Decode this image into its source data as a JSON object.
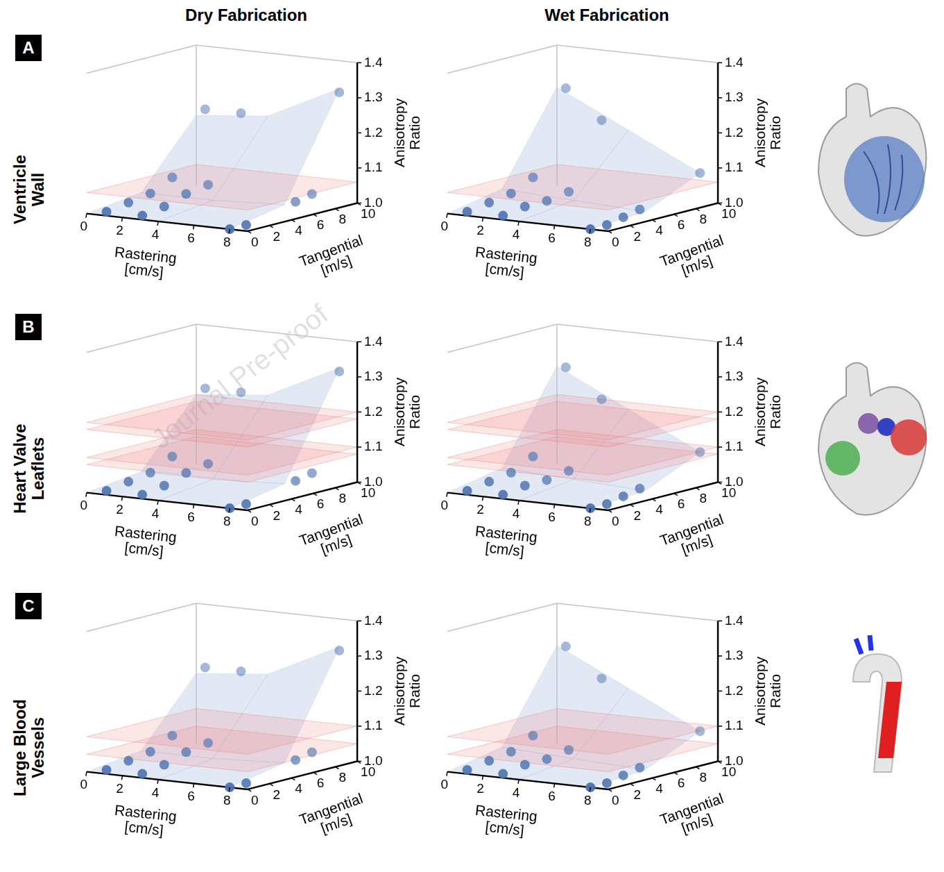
{
  "columns": [
    "Dry Fabrication",
    "Wet Fabrication"
  ],
  "rows": [
    {
      "letter": "A",
      "label": "Ventricle Wall"
    },
    {
      "letter": "B",
      "label": "Heart Valve Leaflets"
    },
    {
      "letter": "C",
      "label": "Large Blood Vessels"
    }
  ],
  "watermark": "Journal Pre-proof",
  "chart_data": [
    {
      "type": "scatter",
      "x_label": "Rastering [cm/s]",
      "y_label": "Tangential [m/s]",
      "z_label": "Anisotropy Ratio",
      "xlim": [
        0,
        9
      ],
      "xticks": [
        0,
        2,
        4,
        6,
        8
      ],
      "ylim": [
        0,
        10
      ],
      "yticks": [
        0,
        2,
        4,
        6,
        8,
        10
      ],
      "zlim": [
        1,
        1.4
      ],
      "zticks": [
        {
          "value": 1,
          "label": "1.0"
        },
        1.1,
        1.2,
        1.3,
        1.4
      ],
      "color": "#4c72b0",
      "x": [
        0.5,
        0.5,
        0.5,
        0.5,
        0.5,
        2.5,
        2.5,
        2.5,
        2.5,
        2.5,
        8,
        8,
        8,
        8,
        8
      ],
      "y": [
        1,
        3,
        5,
        7,
        10,
        1,
        3,
        5,
        7,
        10,
        0,
        1.5,
        6,
        7.5,
        10
      ],
      "z": [
        1.0,
        1.01,
        1.02,
        1.05,
        1.22,
        1.0,
        1.01,
        1.03,
        1.04,
        1.22,
        1.0,
        1.0,
        1.03,
        1.04,
        1.31
      ],
      "surface": {
        "rastering": [
          0,
          4,
          8
        ],
        "tangential": [
          0,
          5,
          10
        ],
        "z": [
          [
            1.0,
            1.0,
            1.0
          ],
          [
            1.02,
            1.02,
            1.03
          ],
          [
            1.2,
            1.22,
            1.32
          ]
        ]
      },
      "target_ratios": [
        1.06
      ]
    },
    {
      "type": "scatter",
      "x_label": "Rastering [cm/s]",
      "y_label": "Tangential [m/s]",
      "z_label": "Anisotropy Ratio",
      "xlim": [
        0,
        9
      ],
      "xticks": [
        0,
        2,
        4,
        6,
        8
      ],
      "ylim": [
        0,
        10
      ],
      "yticks": [
        0,
        2,
        4,
        6,
        8,
        10
      ],
      "zlim": [
        1,
        1.4
      ],
      "zticks": [
        {
          "value": 1,
          "label": "1.0"
        },
        1.1,
        1.2,
        1.3,
        1.4
      ],
      "color": "#4c72b0",
      "x": [
        0.5,
        0.5,
        0.5,
        0.5,
        0.5,
        2.5,
        2.5,
        2.5,
        2.5,
        2.5,
        8,
        8,
        8,
        8,
        8
      ],
      "y": [
        1,
        3,
        5,
        7,
        10,
        1,
        3,
        5,
        7,
        10,
        0,
        1.5,
        3,
        4.5,
        10
      ],
      "z": [
        1.0,
        1.01,
        1.02,
        1.05,
        1.28,
        1.0,
        1.01,
        1.01,
        1.02,
        1.2,
        1.0,
        1.0,
        1.01,
        1.02,
        1.08
      ],
      "surface": {
        "rastering": [
          0,
          4,
          8
        ],
        "tangential": [
          0,
          5,
          10
        ],
        "z": [
          [
            1.0,
            1.0,
            1.0
          ],
          [
            1.03,
            1.02,
            1.01
          ],
          [
            1.28,
            1.18,
            1.08
          ]
        ]
      },
      "target_ratios": [
        1.06
      ]
    },
    {
      "type": "scatter",
      "x_label": "Rastering [cm/s]",
      "y_label": "Tangential [m/s]",
      "z_label": "Anisotropy Ratio",
      "xlim": [
        0,
        9
      ],
      "xticks": [
        0,
        2,
        4,
        6,
        8
      ],
      "ylim": [
        0,
        10
      ],
      "yticks": [
        0,
        2,
        4,
        6,
        8,
        10
      ],
      "zlim": [
        1,
        1.4
      ],
      "zticks": [
        {
          "value": 1,
          "label": "1.0"
        },
        1.1,
        1.2,
        1.3,
        1.4
      ],
      "color": "#4c72b0",
      "x": [
        0.5,
        0.5,
        0.5,
        0.5,
        0.5,
        2.5,
        2.5,
        2.5,
        2.5,
        2.5,
        8,
        8,
        8,
        8,
        8
      ],
      "y": [
        1,
        3,
        5,
        7,
        10,
        1,
        3,
        5,
        7,
        10,
        0,
        1.5,
        6,
        7.5,
        10
      ],
      "z": [
        1.0,
        1.01,
        1.02,
        1.05,
        1.22,
        1.0,
        1.01,
        1.03,
        1.04,
        1.22,
        1.0,
        1.0,
        1.03,
        1.04,
        1.31
      ],
      "surface": {
        "rastering": [
          0,
          4,
          8
        ],
        "tangential": [
          0,
          5,
          10
        ],
        "z": [
          [
            1.0,
            1.0,
            1.0
          ],
          [
            1.02,
            1.02,
            1.03
          ],
          [
            1.2,
            1.22,
            1.32
          ]
        ]
      },
      "target_ratios": [
        1.08,
        1.1,
        1.18,
        1.2
      ]
    },
    {
      "type": "scatter",
      "x_label": "Rastering [cm/s]",
      "y_label": "Tangential [m/s]",
      "z_label": "Anisotropy Ratio",
      "xlim": [
        0,
        9
      ],
      "xticks": [
        0,
        2,
        4,
        6,
        8
      ],
      "ylim": [
        0,
        10
      ],
      "yticks": [
        0,
        2,
        4,
        6,
        8,
        10
      ],
      "zlim": [
        1,
        1.4
      ],
      "zticks": [
        {
          "value": 1,
          "label": "1.0"
        },
        1.1,
        1.2,
        1.3,
        1.4
      ],
      "color": "#4c72b0",
      "x": [
        0.5,
        0.5,
        0.5,
        0.5,
        0.5,
        2.5,
        2.5,
        2.5,
        2.5,
        2.5,
        8,
        8,
        8,
        8,
        8
      ],
      "y": [
        1,
        3,
        5,
        7,
        10,
        1,
        3,
        5,
        7,
        10,
        0,
        1.5,
        3,
        4.5,
        10
      ],
      "z": [
        1.0,
        1.01,
        1.02,
        1.05,
        1.28,
        1.0,
        1.01,
        1.01,
        1.02,
        1.2,
        1.0,
        1.0,
        1.01,
        1.02,
        1.08
      ],
      "surface": {
        "rastering": [
          0,
          4,
          8
        ],
        "tangential": [
          0,
          5,
          10
        ],
        "z": [
          [
            1.0,
            1.0,
            1.0
          ],
          [
            1.03,
            1.02,
            1.01
          ],
          [
            1.28,
            1.18,
            1.08
          ]
        ]
      },
      "target_ratios": [
        1.08,
        1.1,
        1.18,
        1.2
      ]
    },
    {
      "type": "scatter",
      "x_label": "Rastering [cm/s]",
      "y_label": "Tangential [m/s]",
      "z_label": "Anisotropy Ratio",
      "xlim": [
        0,
        9
      ],
      "xticks": [
        0,
        2,
        4,
        6,
        8
      ],
      "ylim": [
        0,
        10
      ],
      "yticks": [
        0,
        2,
        4,
        6,
        8,
        10
      ],
      "zlim": [
        1,
        1.4
      ],
      "zticks": [
        {
          "value": 1,
          "label": "1.0"
        },
        1.1,
        1.2,
        1.3,
        1.4
      ],
      "color": "#4c72b0",
      "x": [
        0.5,
        0.5,
        0.5,
        0.5,
        0.5,
        2.5,
        2.5,
        2.5,
        2.5,
        2.5,
        8,
        8,
        8,
        8,
        8
      ],
      "y": [
        1,
        3,
        5,
        7,
        10,
        1,
        3,
        5,
        7,
        10,
        0,
        1.5,
        6,
        7.5,
        10
      ],
      "z": [
        1.0,
        1.01,
        1.02,
        1.05,
        1.22,
        1.0,
        1.01,
        1.03,
        1.04,
        1.22,
        1.0,
        1.0,
        1.03,
        1.04,
        1.31
      ],
      "surface": {
        "rastering": [
          0,
          4,
          8
        ],
        "tangential": [
          0,
          5,
          10
        ],
        "z": [
          [
            1.0,
            1.0,
            1.0
          ],
          [
            1.02,
            1.02,
            1.03
          ],
          [
            1.2,
            1.22,
            1.32
          ]
        ]
      },
      "target_ratios": [
        1.05,
        1.1
      ]
    },
    {
      "type": "scatter",
      "x_label": "Rastering [cm/s]",
      "y_label": "Tangential [m/s]",
      "z_label": "Anisotropy Ratio",
      "xlim": [
        0,
        9
      ],
      "xticks": [
        0,
        2,
        4,
        6,
        8
      ],
      "ylim": [
        0,
        10
      ],
      "yticks": [
        0,
        2,
        4,
        6,
        8,
        10
      ],
      "zlim": [
        1,
        1.4
      ],
      "zticks": [
        {
          "value": 1,
          "label": "1.0"
        },
        1.1,
        1.2,
        1.3,
        1.4
      ],
      "color": "#4c72b0",
      "x": [
        0.5,
        0.5,
        0.5,
        0.5,
        0.5,
        2.5,
        2.5,
        2.5,
        2.5,
        2.5,
        8,
        8,
        8,
        8,
        8
      ],
      "y": [
        1,
        3,
        5,
        7,
        10,
        1,
        3,
        5,
        7,
        10,
        0,
        1.5,
        3,
        4.5,
        10
      ],
      "z": [
        1.0,
        1.01,
        1.02,
        1.05,
        1.28,
        1.0,
        1.01,
        1.01,
        1.02,
        1.2,
        1.0,
        1.0,
        1.01,
        1.02,
        1.08
      ],
      "surface": {
        "rastering": [
          0,
          4,
          8
        ],
        "tangential": [
          0,
          5,
          10
        ],
        "z": [
          [
            1.0,
            1.0,
            1.0
          ],
          [
            1.03,
            1.02,
            1.01
          ],
          [
            1.28,
            1.18,
            1.08
          ]
        ]
      },
      "target_ratios": [
        1.05,
        1.1
      ]
    }
  ]
}
